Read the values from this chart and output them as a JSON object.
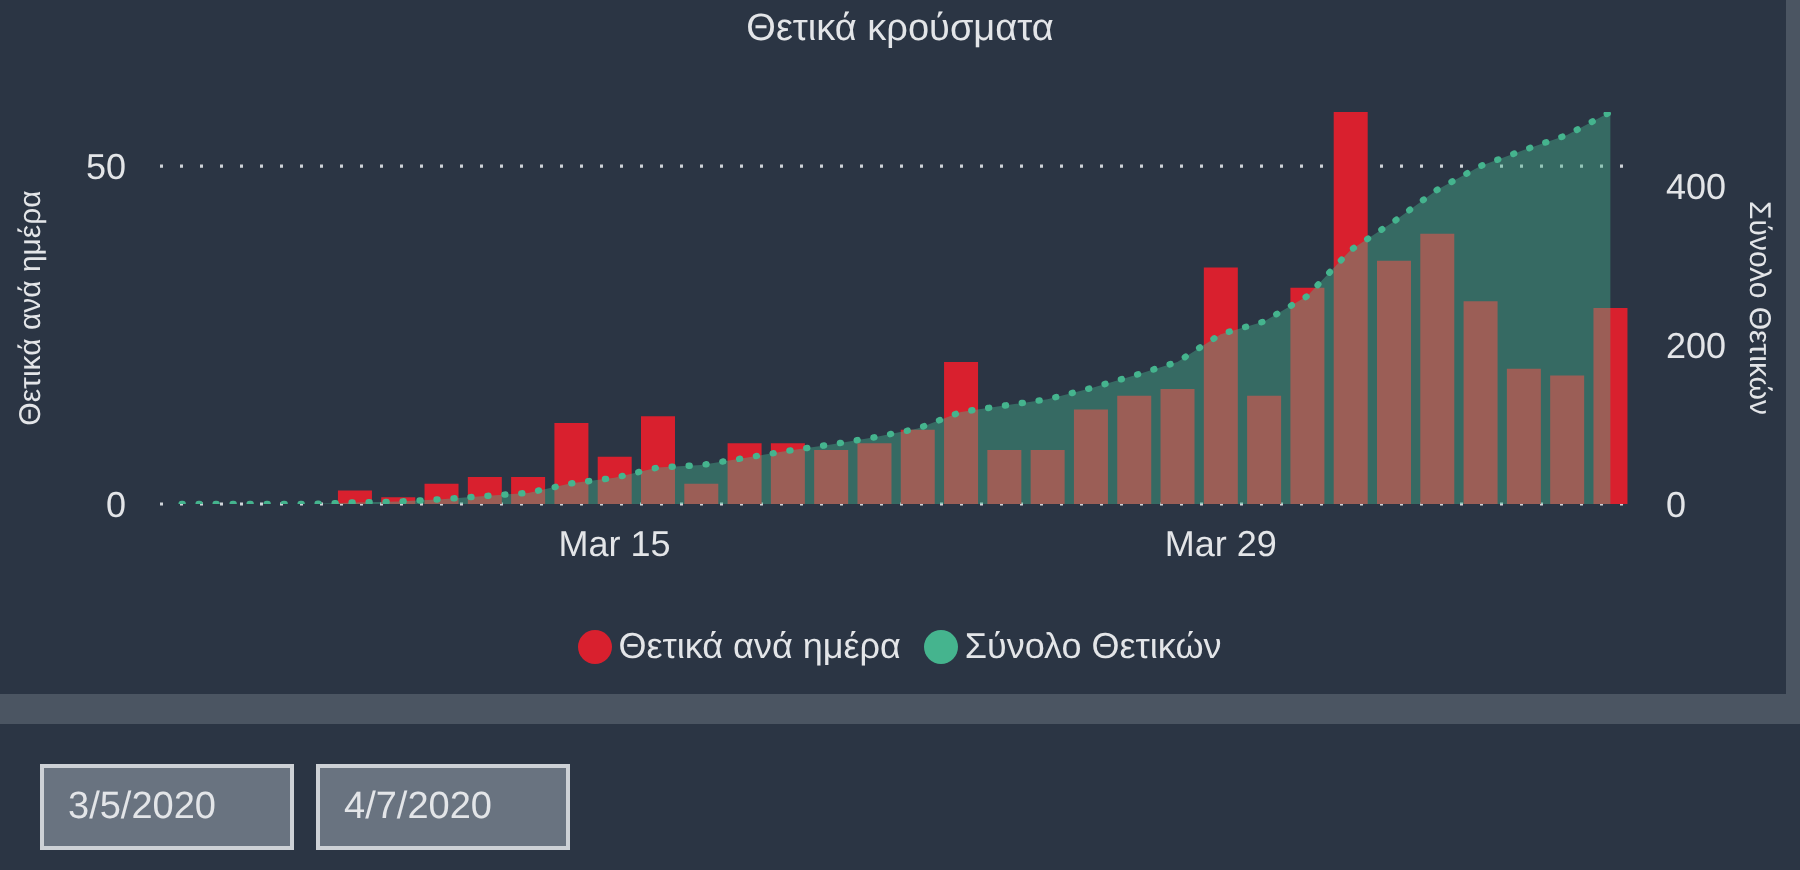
{
  "chart_data": {
    "type": "bar",
    "title": "Θετικά κρούσματα",
    "ylabel": "Θετικά ανά ημέρα",
    "y2label": "Σύνολο Θετικών",
    "categories": [
      null,
      null,
      null,
      null,
      null,
      null,
      null,
      null,
      null,
      null,
      "Mar 15",
      null,
      null,
      null,
      null,
      null,
      null,
      null,
      null,
      null,
      null,
      null,
      null,
      null,
      "Mar 29",
      null,
      null,
      null,
      null,
      null,
      null,
      null,
      null,
      null
    ],
    "series": [
      {
        "name": "Θετικά ανά ημέρα",
        "color": "#d9202e",
        "values": [
          0,
          0,
          0,
          0,
          2,
          1,
          3,
          4,
          4,
          12,
          7,
          13,
          3,
          9,
          9,
          8,
          9,
          11,
          21,
          8,
          8,
          14,
          16,
          17,
          35,
          16,
          32,
          58,
          36,
          40,
          30,
          20,
          19,
          29
        ]
      },
      {
        "name": "Σύνολο Θετικών",
        "type": "area",
        "axis": "y2",
        "color": "#45b48e",
        "values": [
          0,
          0,
          0,
          0,
          2,
          3,
          6,
          10,
          14,
          26,
          33,
          46,
          49,
          58,
          67,
          75,
          84,
          95,
          116,
          124,
          132,
          146,
          162,
          179,
          214,
          230,
          262,
          320,
          356,
          396,
          426,
          446,
          465,
          494
        ]
      }
    ],
    "ylim": [
      0,
      58
    ],
    "yticks": [
      0,
      50
    ],
    "y2lim": [
      0,
      494
    ],
    "y2ticks": [
      0,
      200,
      400
    ],
    "grid": "y",
    "legend": "bottom",
    "line_style": "dotted",
    "annotations": [
      "3/5/2020",
      "4/7/2020"
    ]
  }
}
